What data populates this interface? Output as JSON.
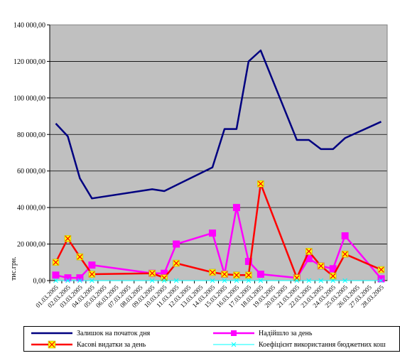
{
  "chart_data": {
    "type": "line",
    "ylabel": "тис.грн.",
    "ylim": [
      0,
      140000
    ],
    "y_ticks": [
      "0,00",
      "20 000,00",
      "40 000,00",
      "60 000,00",
      "80 000,00",
      "100 000,00",
      "120 000,00",
      "140 000,00"
    ],
    "categories": [
      "01.03.2005",
      "02.03.2005",
      "03.03.2005",
      "04.03.2005",
      "05.03.2005",
      "06.03.2005",
      "07.03.2005",
      "08.03.2005",
      "09.03.2005",
      "10.03.2005",
      "11.03.2005",
      "12.03.2005",
      "13.03.2005",
      "14.03.2005",
      "15.03.2005",
      "16.03.2005",
      "17.03.2005",
      "18.03.2005",
      "19.03.2005",
      "20.03.2005",
      "21.03.2005",
      "22.03.2005",
      "23.03.2005",
      "24.03.2005",
      "25.03.2005",
      "26.03.2005",
      "27.03.2005",
      "28.03.2005"
    ],
    "grid": "horizontal",
    "legend": "bottom",
    "plot_background": "#c0c0c0",
    "series": [
      {
        "name": "Залишок на початок дня",
        "color": "#000080",
        "marker": "none",
        "values": [
          86000,
          79000,
          56000,
          45000,
          null,
          null,
          null,
          null,
          50000,
          49000,
          null,
          null,
          null,
          62000,
          83000,
          83000,
          120000,
          126000,
          null,
          null,
          77000,
          77000,
          72000,
          72000,
          78000,
          null,
          null,
          87000
        ]
      },
      {
        "name": "Надійшло за день",
        "color": "#ff00ff",
        "marker": "square",
        "values": [
          3000,
          1500,
          1500,
          8500,
          null,
          null,
          null,
          null,
          4000,
          4000,
          20000,
          null,
          null,
          26000,
          3500,
          40000,
          10500,
          3500,
          null,
          null,
          1500,
          12000,
          8000,
          6500,
          24500,
          null,
          null,
          1000
        ]
      },
      {
        "name": "Касові видатки за день",
        "color": "#ff0000",
        "marker": "x-yellow",
        "values": [
          10000,
          23000,
          13000,
          3500,
          null,
          null,
          null,
          null,
          4000,
          1500,
          9500,
          null,
          null,
          4500,
          3500,
          3000,
          3000,
          53000,
          null,
          null,
          1500,
          16000,
          8000,
          2500,
          14500,
          null,
          null,
          6000
        ]
      },
      {
        "name": "Коефіцієнт використання бюджетних кош",
        "color": "#00ffff",
        "marker": "x",
        "values": [
          0,
          0,
          0,
          0,
          null,
          null,
          null,
          null,
          0,
          0,
          0,
          null,
          null,
          0,
          0,
          0,
          0,
          0,
          null,
          null,
          0,
          0,
          0,
          0,
          0,
          null,
          null,
          0
        ]
      }
    ]
  }
}
